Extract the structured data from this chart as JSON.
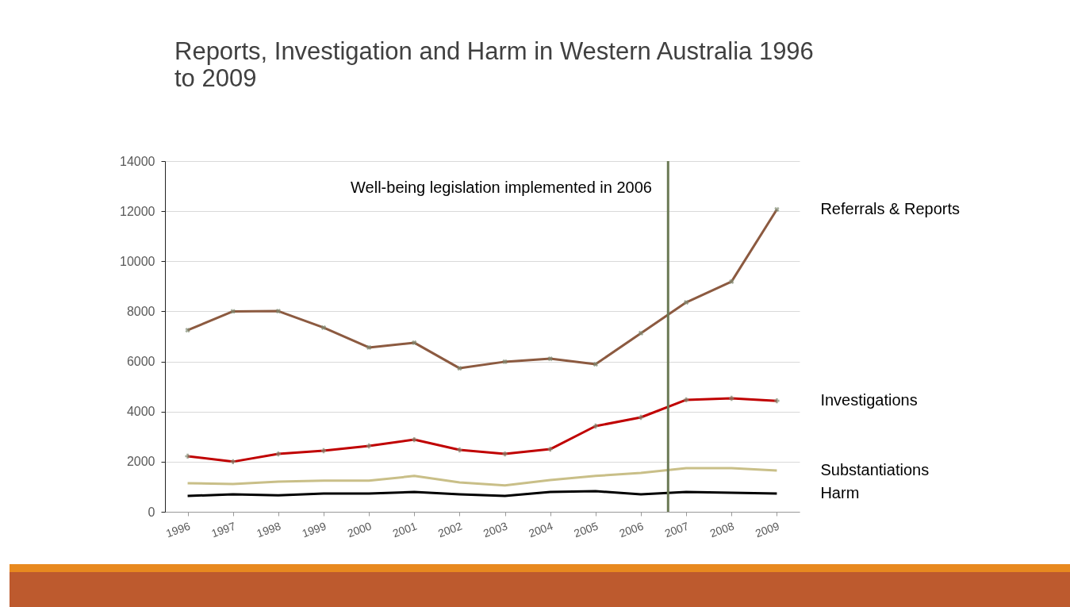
{
  "chart_data": {
    "type": "line",
    "title": "Reports, Investigation and Harm in Western Australia 1996 to 2009",
    "x": [
      1996,
      1997,
      1998,
      1999,
      2000,
      2001,
      2002,
      2003,
      2004,
      2005,
      2006,
      2007,
      2008,
      2009
    ],
    "xlim": [
      1995.5,
      2009.5
    ],
    "xticks": [
      1996,
      1997,
      1998,
      1999,
      2000,
      2001,
      2002,
      2003,
      2004,
      2005,
      2006,
      2007,
      2008,
      2009
    ],
    "ylim": [
      0,
      14000
    ],
    "yticks": [
      0,
      2000,
      4000,
      6000,
      8000,
      10000,
      12000,
      14000
    ],
    "grid": "y",
    "series": [
      {
        "name": "Referrals & Reports",
        "color": "#8c5a40",
        "marker": "cross",
        "values": [
          7250,
          8000,
          8010,
          7350,
          6560,
          6750,
          5730,
          5990,
          6110,
          5890,
          7130,
          8360,
          9190,
          12070
        ]
      },
      {
        "name": "Investigations",
        "color": "#c00000",
        "marker": "cross",
        "values": [
          2220,
          2000,
          2310,
          2440,
          2630,
          2880,
          2470,
          2310,
          2500,
          3420,
          3770,
          4470,
          4530,
          4430
        ]
      },
      {
        "name": "Substantiations",
        "color": "#c9bf88",
        "values": [
          1140,
          1110,
          1200,
          1240,
          1240,
          1430,
          1170,
          1050,
          1270,
          1430,
          1550,
          1740,
          1740,
          1650
        ]
      },
      {
        "name": "Harm",
        "color": "#000000",
        "values": [
          630,
          700,
          660,
          730,
          730,
          790,
          700,
          630,
          790,
          820,
          700,
          790,
          760,
          730
        ]
      }
    ],
    "ref_lines": [
      {
        "axis": "x",
        "value": 2006.6,
        "color": "#6b7a55"
      }
    ],
    "annotations": [
      "Well-being legislation implemented in 2006"
    ]
  }
}
